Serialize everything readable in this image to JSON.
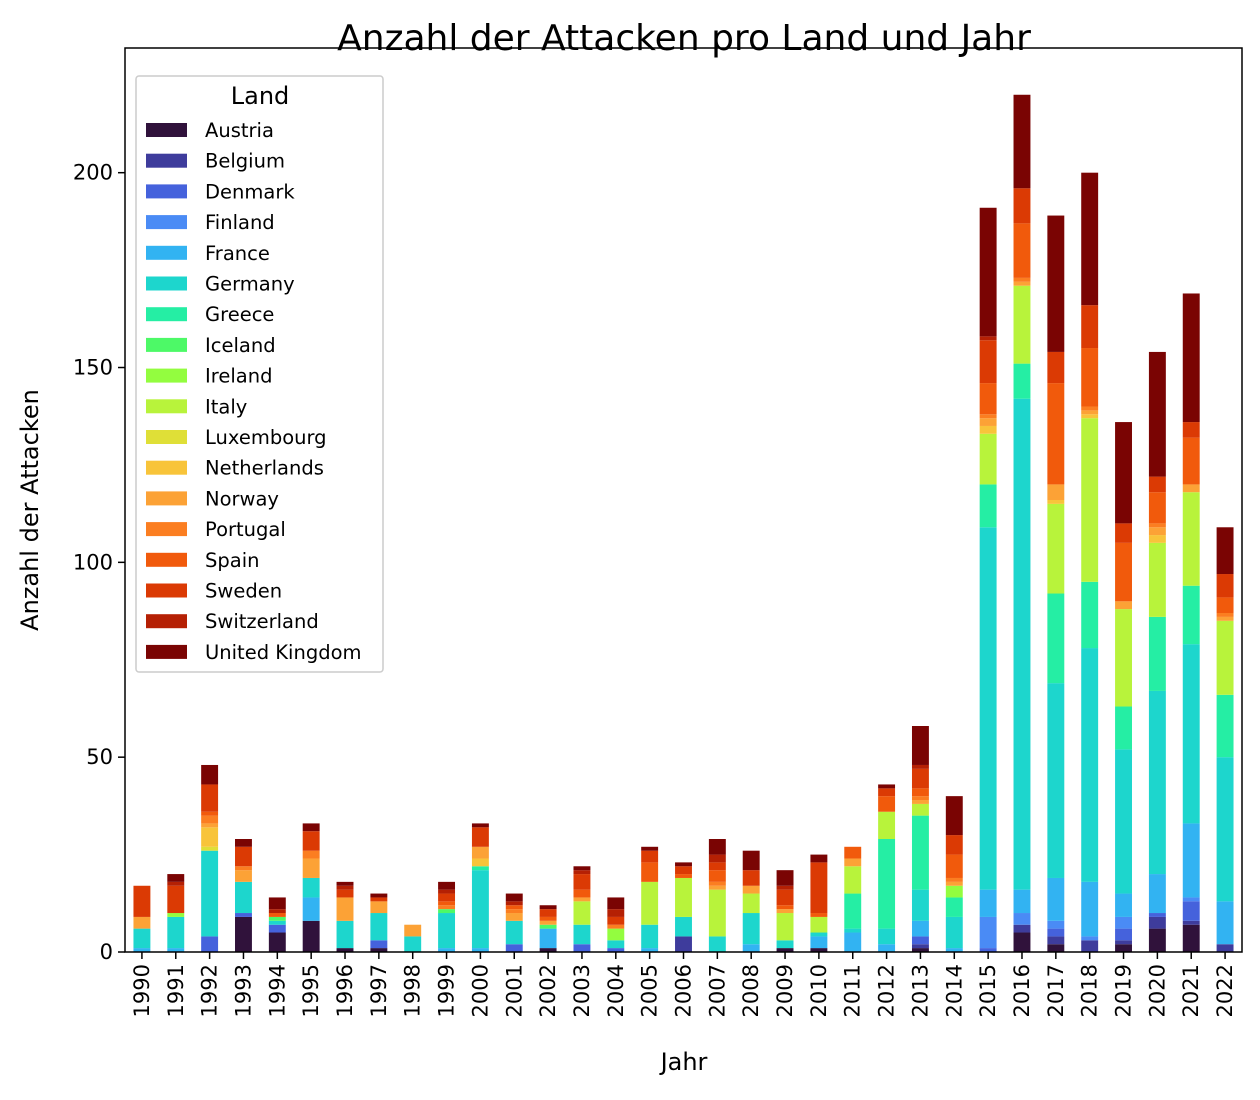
{
  "chart_data": {
    "type": "bar",
    "stacked": true,
    "title": "Anzahl der Attacken pro Land und Jahr",
    "xlabel": "Jahr",
    "ylabel": "Anzahl der Attacken",
    "ylim": [
      0,
      232
    ],
    "yticks": [
      0,
      50,
      100,
      150,
      200
    ],
    "grid": false,
    "legend": {
      "title": "Land",
      "position": "top-left"
    },
    "categories": [
      "1990",
      "1991",
      "1992",
      "1993",
      "1994",
      "1995",
      "1996",
      "1997",
      "1998",
      "1999",
      "2000",
      "2001",
      "2002",
      "2003",
      "2004",
      "2005",
      "2006",
      "2007",
      "2008",
      "2009",
      "2010",
      "2011",
      "2012",
      "2013",
      "2014",
      "2015",
      "2016",
      "2017",
      "2018",
      "2019",
      "2020",
      "2021",
      "2022"
    ],
    "series": [
      {
        "name": "Austria",
        "color": "#30123b",
        "values": [
          0,
          0,
          0,
          9,
          5,
          8,
          1,
          1,
          0,
          0,
          0,
          0,
          1,
          0,
          0,
          0,
          0,
          0,
          0,
          1,
          1,
          0,
          0,
          1,
          0,
          0,
          5,
          2,
          0,
          2,
          6,
          7,
          0
        ]
      },
      {
        "name": "Belgium",
        "color": "#3e3c9c",
        "values": [
          0,
          0,
          0,
          0,
          0,
          0,
          0,
          0,
          0,
          0,
          0,
          0,
          0,
          0,
          0,
          0,
          4,
          0,
          0,
          0,
          0,
          0,
          0,
          1,
          0,
          0,
          2,
          2,
          3,
          1,
          3,
          1,
          2
        ]
      },
      {
        "name": "Denmark",
        "color": "#4562dc",
        "values": [
          0,
          0,
          4,
          1,
          2,
          0,
          0,
          2,
          0,
          0,
          0,
          2,
          0,
          2,
          1,
          0,
          0,
          0,
          0,
          0,
          0,
          0,
          0,
          2,
          0,
          1,
          0,
          2,
          0,
          3,
          1,
          5,
          0
        ]
      },
      {
        "name": "Finland",
        "color": "#4a8bf5",
        "values": [
          0,
          0,
          0,
          0,
          0,
          0,
          0,
          0,
          0,
          0,
          0,
          0,
          0,
          0,
          0,
          0,
          0,
          0,
          0,
          0,
          0,
          0,
          0,
          0,
          0,
          8,
          3,
          2,
          1,
          3,
          0,
          1,
          0
        ]
      },
      {
        "name": "France",
        "color": "#32b3f2",
        "values": [
          1,
          1,
          0,
          0,
          0,
          6,
          0,
          0,
          0,
          1,
          1,
          0,
          5,
          0,
          0,
          1,
          0,
          0,
          2,
          0,
          3,
          5,
          2,
          4,
          1,
          7,
          6,
          11,
          14,
          6,
          10,
          19,
          11
        ]
      },
      {
        "name": "Germany",
        "color": "#1dd6cd",
        "values": [
          5,
          8,
          22,
          8,
          1,
          5,
          7,
          7,
          4,
          9,
          20,
          6,
          0,
          5,
          2,
          6,
          5,
          4,
          8,
          2,
          1,
          1,
          4,
          8,
          8,
          93,
          126,
          50,
          60,
          37,
          47,
          46,
          37
        ]
      },
      {
        "name": "Greece",
        "color": "#25eea4",
        "values": [
          0,
          0,
          0,
          0,
          0,
          0,
          0,
          0,
          0,
          0,
          1,
          0,
          0,
          0,
          0,
          0,
          0,
          0,
          0,
          0,
          0,
          9,
          23,
          19,
          5,
          11,
          9,
          23,
          17,
          11,
          19,
          15,
          16
        ]
      },
      {
        "name": "Iceland",
        "color": "#4df967",
        "values": [
          0,
          0,
          0,
          0,
          1,
          0,
          0,
          0,
          0,
          1,
          0,
          0,
          1,
          0,
          0,
          0,
          0,
          0,
          0,
          0,
          0,
          0,
          0,
          0,
          0,
          0,
          0,
          0,
          0,
          0,
          0,
          0,
          0
        ]
      },
      {
        "name": "Ireland",
        "color": "#93fd3f",
        "values": [
          0,
          1,
          0,
          0,
          0,
          0,
          0,
          0,
          0,
          0,
          0,
          0,
          0,
          0,
          3,
          0,
          0,
          0,
          0,
          0,
          0,
          0,
          0,
          0,
          3,
          0,
          0,
          0,
          0,
          0,
          0,
          0,
          0
        ]
      },
      {
        "name": "Italy",
        "color": "#b8f33b",
        "values": [
          0,
          0,
          0,
          0,
          0,
          0,
          0,
          0,
          0,
          0,
          0,
          0,
          0,
          6,
          0,
          11,
          10,
          12,
          5,
          7,
          4,
          7,
          7,
          3,
          0,
          13,
          20,
          23,
          42,
          25,
          19,
          24,
          19
        ]
      },
      {
        "name": "Luxembourg",
        "color": "#dfdf37",
        "values": [
          0,
          0,
          1,
          0,
          0,
          0,
          0,
          0,
          0,
          0,
          0,
          0,
          0,
          0,
          0,
          0,
          0,
          0,
          0,
          0,
          0,
          0,
          0,
          0,
          0,
          0,
          0,
          0,
          0,
          0,
          0,
          0,
          0
        ]
      },
      {
        "name": "Netherlands",
        "color": "#f8c43a",
        "values": [
          0,
          0,
          5,
          0,
          0,
          0,
          0,
          0,
          0,
          0,
          2,
          0,
          0,
          0,
          0,
          0,
          0,
          0,
          0,
          0,
          0,
          0,
          0,
          0,
          0,
          2,
          0,
          1,
          1,
          0,
          2,
          0,
          0
        ]
      },
      {
        "name": "Norway",
        "color": "#fca236",
        "values": [
          3,
          0,
          1,
          3,
          0,
          5,
          6,
          3,
          3,
          0,
          3,
          2,
          1,
          1,
          0,
          0,
          0,
          1,
          2,
          1,
          0,
          2,
          0,
          1,
          1,
          2,
          1,
          4,
          1,
          2,
          2,
          2,
          1
        ]
      },
      {
        "name": "Portugal",
        "color": "#fb7e21",
        "values": [
          0,
          0,
          2,
          1,
          0,
          2,
          0,
          0,
          0,
          1,
          0,
          1,
          0,
          0,
          1,
          0,
          0,
          1,
          0,
          0,
          0,
          0,
          0,
          1,
          1,
          1,
          1,
          0,
          1,
          0,
          1,
          0,
          1
        ]
      },
      {
        "name": "Spain",
        "color": "#f15a0c",
        "values": [
          0,
          0,
          1,
          0,
          1,
          0,
          0,
          0,
          0,
          1,
          0,
          1,
          1,
          2,
          0,
          5,
          1,
          3,
          0,
          1,
          1,
          3,
          4,
          2,
          6,
          8,
          14,
          26,
          15,
          15,
          8,
          12,
          4
        ]
      },
      {
        "name": "Sweden",
        "color": "#db3a04",
        "values": [
          8,
          7,
          7,
          5,
          0,
          5,
          2,
          1,
          0,
          2,
          5,
          0,
          2,
          4,
          2,
          3,
          2,
          2,
          4,
          4,
          13,
          0,
          2,
          5,
          5,
          11,
          9,
          8,
          11,
          5,
          4,
          4,
          6
        ]
      },
      {
        "name": "Switzerland",
        "color": "#b52004",
        "values": [
          0,
          1,
          0,
          0,
          1,
          0,
          1,
          0,
          0,
          1,
          0,
          1,
          0,
          1,
          2,
          0,
          0,
          2,
          0,
          1,
          0,
          0,
          0,
          1,
          0,
          1,
          0,
          0,
          0,
          0,
          0,
          0,
          0
        ]
      },
      {
        "name": "United Kingdom",
        "color": "#7a0403",
        "values": [
          0,
          2,
          5,
          2,
          3,
          2,
          1,
          1,
          0,
          2,
          1,
          2,
          1,
          1,
          3,
          1,
          1,
          4,
          5,
          4,
          2,
          0,
          1,
          10,
          10,
          33,
          24,
          35,
          34,
          26,
          32,
          33,
          12
        ]
      }
    ]
  }
}
